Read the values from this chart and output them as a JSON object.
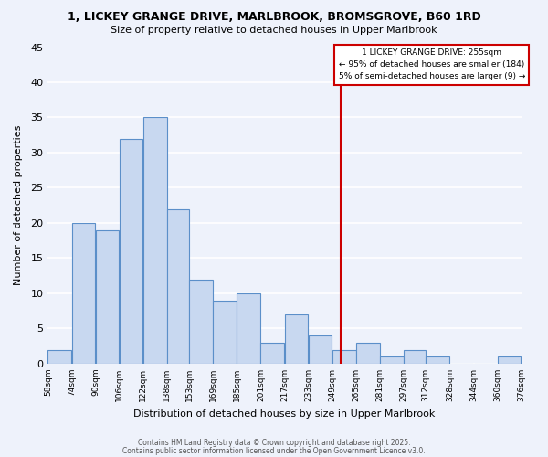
{
  "title": "1, LICKEY GRANGE DRIVE, MARLBROOK, BROMSGROVE, B60 1RD",
  "subtitle": "Size of property relative to detached houses in Upper Marlbrook",
  "xlabel": "Distribution of detached houses by size in Upper Marlbrook",
  "ylabel": "Number of detached properties",
  "bar_color": "#c8d8f0",
  "bar_edge_color": "#5b8fc9",
  "background_color": "#eef2fb",
  "grid_color": "#ffffff",
  "bins": [
    58,
    74,
    90,
    106,
    122,
    138,
    153,
    169,
    185,
    201,
    217,
    233,
    249,
    265,
    281,
    297,
    312,
    328,
    344,
    360,
    376
  ],
  "bin_labels": [
    "58sqm",
    "74sqm",
    "90sqm",
    "106sqm",
    "122sqm",
    "138sqm",
    "153sqm",
    "169sqm",
    "185sqm",
    "201sqm",
    "217sqm",
    "233sqm",
    "249sqm",
    "265sqm",
    "281sqm",
    "297sqm",
    "312sqm",
    "328sqm",
    "344sqm",
    "360sqm",
    "376sqm"
  ],
  "counts": [
    2,
    20,
    19,
    32,
    35,
    22,
    12,
    9,
    10,
    3,
    7,
    4,
    2,
    3,
    1,
    2,
    1,
    0,
    0,
    1
  ],
  "vline_x": 255,
  "vline_color": "#cc0000",
  "ylim": [
    0,
    45
  ],
  "yticks": [
    0,
    5,
    10,
    15,
    20,
    25,
    30,
    35,
    40,
    45
  ],
  "annotation_title": "1 LICKEY GRANGE DRIVE: 255sqm",
  "annotation_line1": "← 95% of detached houses are smaller (184)",
  "annotation_line2": "5% of semi-detached houses are larger (9) →",
  "footnote1": "Contains HM Land Registry data © Crown copyright and database right 2025.",
  "footnote2": "Contains public sector information licensed under the Open Government Licence v3.0."
}
